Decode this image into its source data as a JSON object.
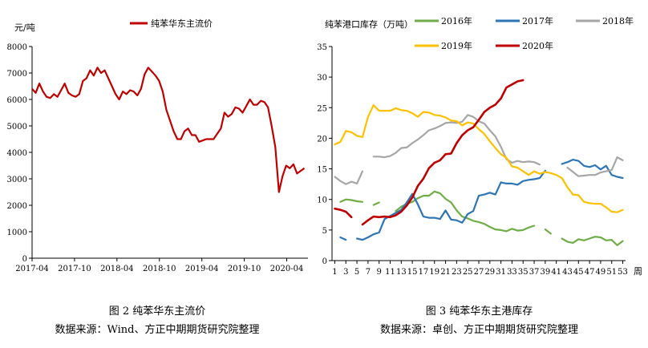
{
  "figure1": {
    "caption": "图 2 纯苯华东主流价",
    "source": "数据来源：Wind、方正中期期货研究院整理"
  },
  "figure2": {
    "caption": "图 3 纯苯华东主港库存",
    "source": "数据来源：卓创、方正中期期货研究院整理"
  },
  "colors": {
    "price": "#c00000",
    "s2016": "#70ad47",
    "s2017": "#2e75b6",
    "s2018": "#a6a6a6",
    "s2019": "#ffc000",
    "s2020": "#c00000"
  },
  "chart_data": [
    {
      "type": "line",
      "title": "",
      "ylabel": "元/吨",
      "xlabel": "",
      "ylim": [
        0,
        8000
      ],
      "yticks": [
        "0",
        "1000",
        "2000",
        "3000",
        "4000",
        "5000",
        "6000",
        "7000",
        "8000"
      ],
      "xticks": [
        "2017-04",
        "2017-10",
        "2018-04",
        "2018-10",
        "2019-04",
        "2019-10",
        "2020-04"
      ],
      "xrange": [
        0,
        38
      ],
      "legend": "top-center",
      "series": [
        {
          "name": "纯苯华东主流价",
          "x": [
            0,
            0.5,
            1,
            1.5,
            2,
            2.5,
            3,
            3.5,
            4,
            4.5,
            5,
            5.5,
            6,
            6.5,
            7,
            7.5,
            8,
            8.5,
            9,
            9.5,
            10,
            10.5,
            11,
            11.5,
            12,
            12.5,
            13,
            13.5,
            14,
            14.5,
            15,
            15.5,
            16,
            16.5,
            17,
            17.5,
            18,
            18.5,
            19,
            19.5,
            20,
            20.5,
            21,
            21.5,
            22,
            22.5,
            23,
            23.5,
            24,
            24.5,
            25,
            25.5,
            26,
            26.5,
            27,
            27.5,
            28,
            28.5,
            29,
            29.5,
            30,
            30.5,
            31,
            31.5,
            32,
            32.5,
            33,
            33.5,
            34,
            34.5,
            35,
            35.5,
            36,
            36.5,
            37,
            37.5
          ],
          "values": [
            6400,
            6250,
            6600,
            6300,
            6100,
            6050,
            6200,
            6100,
            6350,
            6600,
            6250,
            6150,
            6100,
            6200,
            6700,
            6800,
            7100,
            6900,
            7200,
            7000,
            7100,
            6800,
            6500,
            6200,
            6000,
            6300,
            6200,
            6350,
            6300,
            6150,
            6400,
            6950,
            7200,
            7050,
            6900,
            6700,
            6300,
            5600,
            5200,
            4800,
            4500,
            4500,
            4800,
            4900,
            4650,
            4650,
            4400,
            4450,
            4500,
            4500,
            4500,
            4700,
            4900,
            5500,
            5350,
            5450,
            5700,
            5650,
            5500,
            5750,
            6000,
            5800,
            5800,
            5950,
            5900,
            5700,
            5000,
            4200,
            2500,
            3100,
            3500,
            3400,
            3550,
            3200,
            3300,
            3400
          ]
        }
      ]
    },
    {
      "type": "line",
      "title": "纯苯港口库存（万吨）",
      "xlabel": "周",
      "ylabel": "",
      "ylim": [
        0,
        35
      ],
      "yticks": [
        "0",
        "5",
        "10",
        "15",
        "20",
        "25",
        "30",
        "35"
      ],
      "xticks": [
        "1",
        "3",
        "5",
        "7",
        "9",
        "11",
        "13",
        "15",
        "17",
        "19",
        "21",
        "23",
        "25",
        "27",
        "29",
        "31",
        "33",
        "35",
        "37",
        "39",
        "41",
        "43",
        "45",
        "47",
        "49",
        "51",
        "53"
      ],
      "legend": "top",
      "series": [
        {
          "name": "2016年",
          "segments": [
            {
              "x": [
                2,
                3,
                4,
                5,
                6
              ],
              "values": [
                9.6,
                10,
                9.9,
                9.7,
                9.6
              ]
            },
            {
              "x": [
                8,
                9
              ],
              "values": [
                9.1,
                9.5
              ]
            },
            {
              "x": [
                12,
                13,
                14,
                15,
                16,
                17,
                18,
                19,
                20,
                21,
                22,
                23,
                24,
                25,
                26,
                27,
                28,
                29,
                30,
                31,
                32,
                33,
                34,
                35,
                36,
                37
              ],
              "values": [
                8.1,
                8.8,
                9.3,
                9.6,
                10.2,
                10.6,
                10.6,
                11.3,
                11,
                10.1,
                9.5,
                8.2,
                7.2,
                6.9,
                6.5,
                6.3,
                6,
                5.5,
                5.1,
                5,
                4.8,
                5.2,
                4.9,
                5,
                5.4,
                5.7
              ]
            },
            {
              "x": [
                39,
                40
              ],
              "values": [
                5.1,
                4.4
              ]
            },
            {
              "x": [
                42,
                43,
                44,
                45,
                46,
                47,
                48,
                49,
                50,
                51,
                52,
                53
              ],
              "values": [
                3.6,
                3.1,
                2.9,
                3.5,
                3.3,
                3.6,
                3.9,
                3.8,
                3.3,
                3.4,
                2.5,
                3.2
              ]
            }
          ]
        },
        {
          "name": "2017年",
          "segments": [
            {
              "x": [
                2,
                3
              ],
              "values": [
                3.8,
                3.4
              ]
            },
            {
              "x": [
                5,
                6,
                7,
                8,
                9,
                10,
                11,
                12,
                13,
                14,
                15,
                16,
                17,
                18,
                19,
                20,
                21,
                22,
                23,
                24,
                25,
                26,
                27,
                28,
                29,
                30,
                31,
                32,
                33,
                34,
                35,
                36,
                37,
                38,
                39
              ],
              "values": [
                3.6,
                3.4,
                3.8,
                4.3,
                4.6,
                6.8,
                7.3,
                7.8,
                8.3,
                9.5,
                10.9,
                9.2,
                7.2,
                7,
                7,
                6.8,
                8.2,
                6.7,
                6.6,
                6.2,
                7.6,
                8.1,
                10.6,
                10.8,
                11.1,
                10.8,
                12.8,
                12.6,
                12.6,
                12.4,
                13,
                13.2,
                13.3,
                13.5,
                14.7
              ]
            },
            {
              "x": [
                42,
                43,
                44,
                45,
                46,
                47,
                48,
                49,
                50,
                51,
                52,
                53
              ],
              "values": [
                15.8,
                16.1,
                16.5,
                16.3,
                15.5,
                15.3,
                15.6,
                14.9,
                15.5,
                14,
                13.7,
                13.5
              ]
            }
          ]
        },
        {
          "name": "2018年",
          "segments": [
            {
              "x": [
                1,
                2,
                3,
                4,
                5,
                6
              ],
              "values": [
                13.7,
                13,
                12.5,
                12.9,
                12.6,
                14.6
              ]
            },
            {
              "x": [
                8,
                9,
                10,
                11,
                12,
                13,
                14,
                15,
                16,
                17,
                18,
                19,
                20,
                21,
                22,
                23,
                24,
                25,
                26,
                27,
                28,
                29,
                30,
                31,
                32,
                33,
                34,
                35,
                36,
                37,
                38
              ],
              "values": [
                17,
                17,
                16.9,
                17.1,
                17.6,
                18.4,
                18.5,
                19.2,
                19.8,
                20.5,
                21.3,
                21.6,
                22,
                22.5,
                22.6,
                22.5,
                22.7,
                23.8,
                23.5,
                22.8,
                22.4,
                21.3,
                20.3,
                18.6,
                16.6,
                16,
                16.3,
                16.1,
                16.2,
                16.1,
                15.7
              ]
            },
            {
              "x": [
                43,
                44,
                45,
                46,
                47,
                48,
                49,
                50,
                51,
                52,
                53
              ],
              "values": [
                15.2,
                14.5,
                13.8,
                13.9,
                14,
                14,
                14.4,
                14.6,
                14.8,
                16.9,
                16.4
              ]
            }
          ]
        },
        {
          "name": "2019年",
          "segments": [
            {
              "x": [
                1,
                2,
                3,
                4,
                5,
                6,
                7,
                8,
                9,
                10,
                11,
                12,
                13,
                14,
                15,
                16,
                17,
                18,
                19,
                20,
                21,
                22,
                23,
                24,
                25,
                26,
                27,
                28,
                29,
                30,
                31,
                32,
                33,
                34,
                35,
                36,
                37,
                38,
                39,
                40,
                41,
                42,
                43,
                44,
                45,
                46,
                47,
                48,
                49,
                50,
                51,
                52,
                53
              ],
              "values": [
                19,
                19.4,
                21.2,
                21,
                20.4,
                20.2,
                23.5,
                25.4,
                24.5,
                24.5,
                24.5,
                24.9,
                24.6,
                24.5,
                24.1,
                23.5,
                24.3,
                24.2,
                23.8,
                23.7,
                23.4,
                22.9,
                22.8,
                22.1,
                22.6,
                22.4,
                21.5,
                20.7,
                19.5,
                18.4,
                17.4,
                16.8,
                15.4,
                15.2,
                14.6,
                14,
                14.6,
                14.2,
                14.5,
                14.3,
                14,
                13.5,
                12,
                10.8,
                10.7,
                9.6,
                9.4,
                9.3,
                9.3,
                8.7,
                8,
                7.9,
                8.3
              ]
            }
          ]
        },
        {
          "name": "2020年",
          "segments": [
            {
              "x": [
                1,
                2,
                3,
                4
              ],
              "values": [
                8.5,
                8.3,
                8,
                7.1
              ]
            },
            {
              "x": [
                6,
                7,
                8,
                9,
                10,
                11,
                12,
                13,
                14,
                15,
                16,
                17,
                18,
                19,
                20,
                21,
                22,
                23,
                24,
                25,
                26,
                27,
                28,
                29,
                30,
                31,
                32,
                33,
                34,
                35
              ],
              "values": [
                5.9,
                6.6,
                7.2,
                7.1,
                7.2,
                7.1,
                7.4,
                8,
                9,
                10.3,
                12.2,
                13.4,
                15.1,
                16,
                16.4,
                17.4,
                17.5,
                19.2,
                20.5,
                21.3,
                21.8,
                23,
                24.3,
                25,
                25.5,
                26.5,
                28.3,
                28.8,
                29.3,
                29.5
              ]
            }
          ]
        }
      ]
    }
  ]
}
